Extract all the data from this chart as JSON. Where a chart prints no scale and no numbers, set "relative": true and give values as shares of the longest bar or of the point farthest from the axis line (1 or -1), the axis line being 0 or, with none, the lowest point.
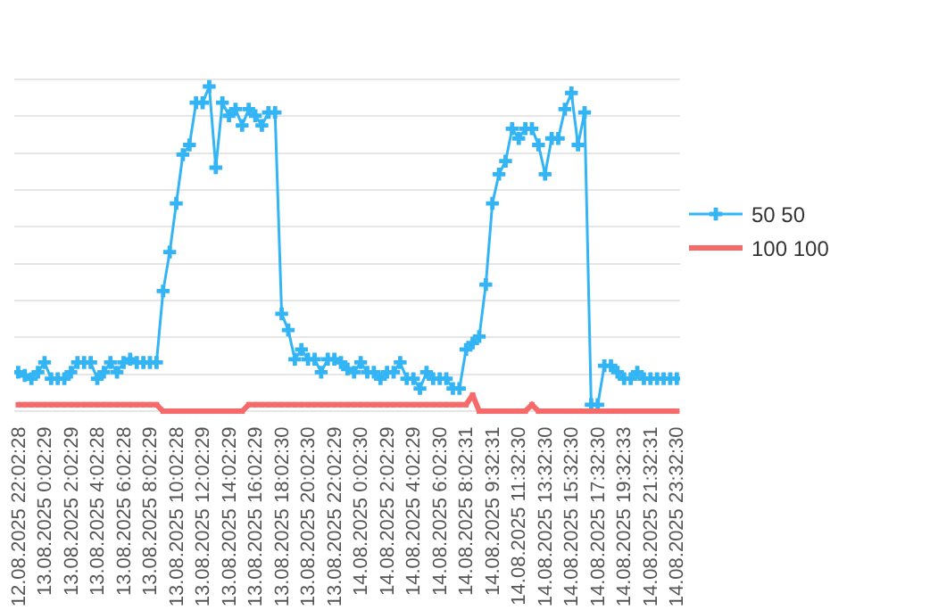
{
  "chart_data": {
    "type": "line",
    "relative": true,
    "grid": "y",
    "legend": "right",
    "categories": [
      "12.08.2025 22:02:28",
      null,
      null,
      null,
      "13.08.2025 0:02:29",
      null,
      null,
      null,
      "13.08.2025 2:02:29",
      null,
      null,
      null,
      "13.08.2025 4:02:28",
      null,
      null,
      null,
      "13.08.2025 6:02:28",
      null,
      null,
      null,
      "13.08.2025 8:02:29",
      null,
      null,
      null,
      "13.08.2025 10:02:28",
      null,
      null,
      null,
      "13.08.2025 12:02:29",
      null,
      null,
      null,
      "13.08.2025 14:02:29",
      null,
      null,
      null,
      "13.08.2025 16:02:29",
      null,
      null,
      null,
      "13.08.2025 18:02:30",
      null,
      null,
      null,
      "13.08.2025 20:02:30",
      null,
      null,
      null,
      "13.08.2025 22:02:29",
      null,
      null,
      null,
      "14.08.2025 0:02:30",
      null,
      null,
      null,
      "14.08.2025 2:02:29",
      null,
      null,
      null,
      "14.08.2025 4:02:29",
      null,
      null,
      null,
      "14.08.2025 6:02:30",
      null,
      null,
      null,
      "14.08.2025 8:02:31",
      null,
      null,
      null,
      "14.08.2025 9:32:31",
      null,
      null,
      null,
      "14.08.2025 11:32:30",
      null,
      null,
      null,
      "14.08.2025 13:32:30",
      null,
      null,
      null,
      "14.08.2025 15:32:30",
      null,
      null,
      null,
      "14.08.2025 17:32:30",
      null,
      null,
      null,
      "14.08.2025 19:32:33",
      null,
      null,
      null,
      "14.08.2025 21:32:31",
      null,
      null,
      null,
      "14.08.2025 23:32:30"
    ],
    "series": [
      {
        "name": "50 50",
        "color": "#33b5f5",
        "marker": "cross",
        "values": [
          0.12,
          0.11,
          0.1,
          0.12,
          0.15,
          0.1,
          0.1,
          0.1,
          0.12,
          0.15,
          0.15,
          0.15,
          0.1,
          0.12,
          0.15,
          0.12,
          0.15,
          0.16,
          0.15,
          0.15,
          0.15,
          0.15,
          0.37,
          0.49,
          0.64,
          0.79,
          0.82,
          0.95,
          0.95,
          1.0,
          0.75,
          0.95,
          0.91,
          0.93,
          0.88,
          0.93,
          0.91,
          0.88,
          0.92,
          0.92,
          0.3,
          0.25,
          0.16,
          0.19,
          0.16,
          0.16,
          0.12,
          0.16,
          0.16,
          0.15,
          0.13,
          0.12,
          0.15,
          0.12,
          0.12,
          0.1,
          0.12,
          0.12,
          0.15,
          0.1,
          0.1,
          0.07,
          0.12,
          0.1,
          0.1,
          0.1,
          0.07,
          0.07,
          0.19,
          0.21,
          0.23,
          0.39,
          0.64,
          0.73,
          0.77,
          0.87,
          0.84,
          0.87,
          0.87,
          0.82,
          0.73,
          0.84,
          0.84,
          0.93,
          0.98,
          0.82,
          0.92,
          0.02,
          0.02,
          0.14,
          0.14,
          0.12,
          0.1,
          0.1,
          0.12,
          0.1,
          0.1,
          0.1,
          0.1,
          0.1,
          0.1
        ]
      },
      {
        "name": "100 100",
        "color": "#f76a6a",
        "marker": "square",
        "values": [
          0.02,
          0.02,
          0.02,
          0.02,
          0.02,
          0.02,
          0.02,
          0.02,
          0.02,
          0.02,
          0.02,
          0.02,
          0.02,
          0.02,
          0.02,
          0.02,
          0.02,
          0.02,
          0.02,
          0.02,
          0.02,
          0.02,
          0,
          0,
          0,
          0,
          0,
          0,
          0,
          0,
          0,
          0,
          0,
          0,
          0,
          0.02,
          0.02,
          0.02,
          0.02,
          0.02,
          0.02,
          0.02,
          0.02,
          0.02,
          0.02,
          0.02,
          0.02,
          0.02,
          0.02,
          0.02,
          0.02,
          0.02,
          0.02,
          0.02,
          0.02,
          0.02,
          0.02,
          0.02,
          0.02,
          0.02,
          0.02,
          0.02,
          0.02,
          0.02,
          0.02,
          0.02,
          0.02,
          0.02,
          0.02,
          0.05,
          0,
          0,
          0,
          0,
          0,
          0,
          0,
          0,
          0.02,
          0,
          0,
          0,
          0,
          0,
          0,
          0,
          0,
          0,
          0,
          0,
          0,
          0,
          0,
          0,
          0,
          0,
          0,
          0,
          0,
          0,
          0
        ]
      }
    ]
  }
}
